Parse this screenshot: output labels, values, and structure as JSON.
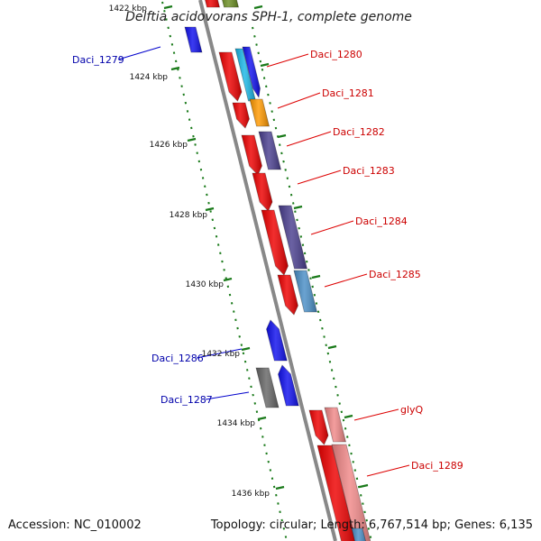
{
  "title": "Delftia acidovorans SPH-1, complete genome",
  "footer": {
    "accession": "Accession: NC_010002",
    "summary": "Topology: circular; Length: 6,767,514 bp; Genes: 6,135"
  },
  "colors": {
    "backbone": "#888888",
    "tick": "#1a7a1a",
    "label_forward": "#cc0000",
    "label_reverse": "#0000aa",
    "leader_forward": "#dd0000",
    "leader_reverse": "#0000cc",
    "red": "#ee0000",
    "blue": "#1010ee",
    "cyan": "#19b7e6",
    "orange": "#ff9900",
    "purple": "#4a3f8f",
    "steelblue": "#4a8fc7",
    "gray": "#666666",
    "pink": "#f08888",
    "olive": "#6b8e23"
  },
  "scale": {
    "labels": [
      "1422 kbp",
      "1424 kbp",
      "1426 kbp",
      "1428 kbp",
      "1430 kbp",
      "1432 kbp",
      "1434 kbp",
      "1436 kbp"
    ]
  },
  "genes": [
    {
      "label": "Daci_1279",
      "strand": "reverse",
      "labelled": true
    },
    {
      "label": "Daci_1280",
      "strand": "forward",
      "labelled": true
    },
    {
      "label": "Daci_1281",
      "strand": "forward",
      "labelled": true
    },
    {
      "label": "Daci_1282",
      "strand": "forward",
      "labelled": true
    },
    {
      "label": "Daci_1283",
      "strand": "forward",
      "labelled": true
    },
    {
      "label": "Daci_1284",
      "strand": "forward",
      "labelled": true
    },
    {
      "label": "Daci_1285",
      "strand": "forward",
      "labelled": true
    },
    {
      "label": "Daci_1286",
      "strand": "reverse",
      "labelled": true
    },
    {
      "label": "Daci_1287",
      "strand": "reverse",
      "labelled": true
    },
    {
      "label": "glyQ",
      "strand": "forward",
      "labelled": true
    },
    {
      "label": "Daci_1289",
      "strand": "forward",
      "labelled": true
    }
  ]
}
